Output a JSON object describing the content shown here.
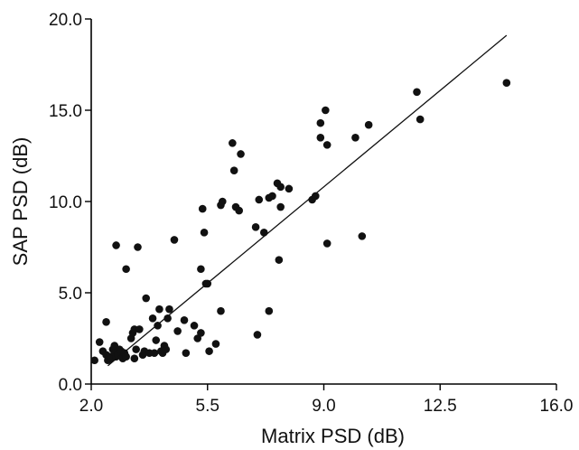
{
  "chart_data": {
    "type": "scatter",
    "title": "",
    "xlabel": "Matrix PSD (dB)",
    "ylabel": "SAP PSD (dB)",
    "xlim": [
      2.0,
      16.0
    ],
    "ylim": [
      0.0,
      20.0
    ],
    "xticks": [
      "2.0",
      "5.5",
      "9.0",
      "12.5",
      "16.0"
    ],
    "yticks": [
      "0.0",
      "5.0",
      "10.0",
      "15.0",
      "20.0"
    ],
    "grid": false,
    "legend": "none",
    "point_color": "#111111",
    "regression_line": {
      "x": [
        2.5,
        14.5
      ],
      "y": [
        1.0,
        19.1
      ]
    },
    "series": [
      {
        "points": [
          [
            2.1,
            1.3
          ],
          [
            2.25,
            2.3
          ],
          [
            2.35,
            1.8
          ],
          [
            2.45,
            1.6
          ],
          [
            2.45,
            3.4
          ],
          [
            2.5,
            1.3
          ],
          [
            2.55,
            1.5
          ],
          [
            2.6,
            1.4
          ],
          [
            2.65,
            1.9
          ],
          [
            2.7,
            1.7
          ],
          [
            2.7,
            2.1
          ],
          [
            2.75,
            1.5
          ],
          [
            2.75,
            7.6
          ],
          [
            2.8,
            1.6
          ],
          [
            2.85,
            1.9
          ],
          [
            2.9,
            1.8
          ],
          [
            2.95,
            1.4
          ],
          [
            3.0,
            1.7
          ],
          [
            3.05,
            1.5
          ],
          [
            3.05,
            6.3
          ],
          [
            3.2,
            2.5
          ],
          [
            3.25,
            2.8
          ],
          [
            3.3,
            3.0
          ],
          [
            3.3,
            1.4
          ],
          [
            3.35,
            1.9
          ],
          [
            3.4,
            7.5
          ],
          [
            3.45,
            3.0
          ],
          [
            3.55,
            1.6
          ],
          [
            3.6,
            1.8
          ],
          [
            3.65,
            4.7
          ],
          [
            3.75,
            1.7
          ],
          [
            3.85,
            3.6
          ],
          [
            3.9,
            1.7
          ],
          [
            3.95,
            2.4
          ],
          [
            4.0,
            3.2
          ],
          [
            4.05,
            4.1
          ],
          [
            4.1,
            1.8
          ],
          [
            4.15,
            1.7
          ],
          [
            4.2,
            2.1
          ],
          [
            4.25,
            1.9
          ],
          [
            4.3,
            3.6
          ],
          [
            4.35,
            4.1
          ],
          [
            4.5,
            7.9
          ],
          [
            4.6,
            2.9
          ],
          [
            4.8,
            3.5
          ],
          [
            4.85,
            1.7
          ],
          [
            5.1,
            3.2
          ],
          [
            5.2,
            2.5
          ],
          [
            5.3,
            2.8
          ],
          [
            5.3,
            6.3
          ],
          [
            5.35,
            9.6
          ],
          [
            5.4,
            8.3
          ],
          [
            5.45,
            5.5
          ],
          [
            5.5,
            5.5
          ],
          [
            5.55,
            1.8
          ],
          [
            5.75,
            2.2
          ],
          [
            5.9,
            4.0
          ],
          [
            5.9,
            9.8
          ],
          [
            5.95,
            10.0
          ],
          [
            6.25,
            13.2
          ],
          [
            6.3,
            11.7
          ],
          [
            6.35,
            9.7
          ],
          [
            6.45,
            9.5
          ],
          [
            6.5,
            12.6
          ],
          [
            6.95,
            8.6
          ],
          [
            7.0,
            2.7
          ],
          [
            7.05,
            10.1
          ],
          [
            7.2,
            8.3
          ],
          [
            7.35,
            10.2
          ],
          [
            7.35,
            4.0
          ],
          [
            7.45,
            10.3
          ],
          [
            7.6,
            11.0
          ],
          [
            7.65,
            6.8
          ],
          [
            7.7,
            9.7
          ],
          [
            7.7,
            10.8
          ],
          [
            7.95,
            10.7
          ],
          [
            8.65,
            10.1
          ],
          [
            8.75,
            10.3
          ],
          [
            8.9,
            13.5
          ],
          [
            8.9,
            14.3
          ],
          [
            9.05,
            15.0
          ],
          [
            9.1,
            13.1
          ],
          [
            9.1,
            7.7
          ],
          [
            9.95,
            13.5
          ],
          [
            10.15,
            8.1
          ],
          [
            10.35,
            14.2
          ],
          [
            11.8,
            16.0
          ],
          [
            11.9,
            14.5
          ],
          [
            14.5,
            16.5
          ]
        ]
      }
    ]
  }
}
